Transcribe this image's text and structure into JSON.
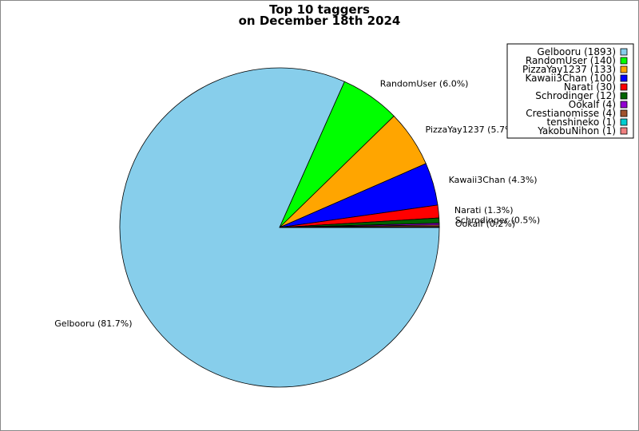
{
  "chart_data": {
    "type": "pie",
    "title": "Top 10 taggers",
    "subtitle": "on December 18th 2024",
    "legend_position": "top-right",
    "slices": [
      {
        "name": "Gelbooru",
        "count": 1893,
        "percent": 81.7,
        "color": "#87ceeb",
        "legend": "Gelbooru (1893)",
        "label": "Gelbooru (81.7%)"
      },
      {
        "name": "RandomUser",
        "count": 140,
        "percent": 6.0,
        "color": "#00ff00",
        "legend": "RandomUser (140)",
        "label": "RandomUser (6.0%)"
      },
      {
        "name": "PizzaYay1237",
        "count": 133,
        "percent": 5.7,
        "color": "#ffa500",
        "legend": "PizzaYay1237 (133)",
        "label": "PizzaYay1237 (5.7%)"
      },
      {
        "name": "Kawaii3Chan",
        "count": 100,
        "percent": 4.3,
        "color": "#0000ff",
        "legend": "Kawaii3Chan (100)",
        "label": "Kawaii3Chan (4.3%)"
      },
      {
        "name": "Narati",
        "count": 30,
        "percent": 1.3,
        "color": "#ff0000",
        "legend": "Narati (30)",
        "label": "Narati (1.3%)"
      },
      {
        "name": "Schrodinger",
        "count": 12,
        "percent": 0.5,
        "color": "#006400",
        "legend": "Schrodinger (12)",
        "label": "Schrodinger (0.5%)"
      },
      {
        "name": "Ookalf",
        "count": 4,
        "percent": 0.2,
        "color": "#9400d3",
        "legend": "Ookalf (4)",
        "label": "Ookalf (0.2%)"
      },
      {
        "name": "Crestianomisse",
        "count": 4,
        "percent": 0.2,
        "color": "#a0522d",
        "legend": "Crestianomisse (4)",
        "label": ""
      },
      {
        "name": "tenshineko",
        "count": 1,
        "percent": 0.04,
        "color": "#00ced1",
        "legend": "tenshineko (1)",
        "label": ""
      },
      {
        "name": "YakobuNihon",
        "count": 1,
        "percent": 0.04,
        "color": "#f08080",
        "legend": "YakobuNihon (1)",
        "label": ""
      }
    ]
  }
}
